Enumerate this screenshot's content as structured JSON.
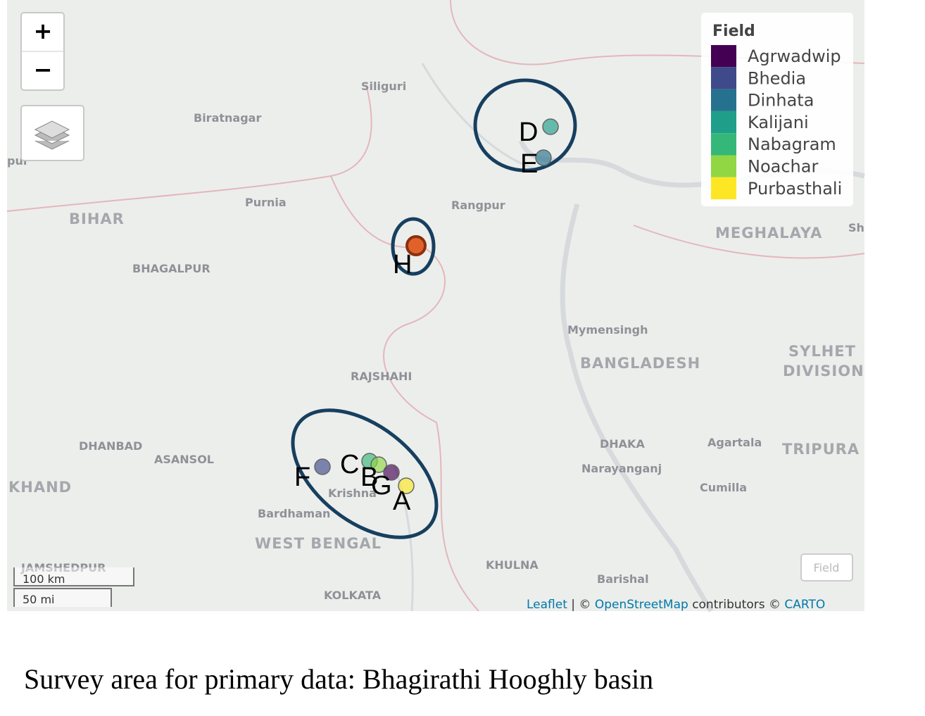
{
  "map": {
    "controls": {
      "zoom_in": "+",
      "zoom_out": "−"
    },
    "place_labels": [
      "Siliguri",
      "Biratnagar",
      "pur",
      "Purnia",
      "Rangpur",
      "BIHAR",
      "BHAGALPUR",
      "MEGHALAYA",
      "Sh",
      "Mymensingh",
      "BANGLADESH",
      "SYLHET",
      "DIVISION",
      "RAJSHAHI",
      "DHANBAD",
      "ASANSOL",
      "DHAKA",
      "Agartala",
      "TRIPURA",
      "Narayanganj",
      "KHAND",
      "Cumilla",
      "Krishna",
      "Bardhaman",
      "WEST BENGAL",
      "JAMSHEDPUR",
      "KHULNA",
      "Barishal",
      "KOLKATA"
    ],
    "legend": {
      "title": "Field",
      "items": [
        {
          "name": "Agrwadwip",
          "color": "#440154"
        },
        {
          "name": "Bhedia",
          "color": "#3e4a89"
        },
        {
          "name": "Dinhata",
          "color": "#26728e"
        },
        {
          "name": "Kalijani",
          "color": "#1f9e89"
        },
        {
          "name": "Nabagram",
          "color": "#35b779"
        },
        {
          "name": "Noachar",
          "color": "#90d743"
        },
        {
          "name": "Purbasthali",
          "color": "#fde725"
        }
      ]
    },
    "points": [
      {
        "label": "D",
        "color": "#1f9e89"
      },
      {
        "label": "E",
        "color": "#26728e"
      },
      {
        "label": "H",
        "color": "#e0622a"
      },
      {
        "label": "F",
        "color": "#3e4a89"
      },
      {
        "label": "C",
        "color": "#35b779"
      },
      {
        "label": "B",
        "color": "#90d743"
      },
      {
        "label": "G",
        "color": "#440154"
      },
      {
        "label": "A",
        "color": "#fde725"
      }
    ],
    "scale": [
      "100 km",
      "50 mi"
    ],
    "field_button": "Field",
    "attribution": [
      "Leaflet",
      "| ©",
      "OpenStreetMap",
      "contributors ©",
      "CARTO"
    ]
  },
  "caption": "Survey area for primary data: Bhagirathi Hooghly basin"
}
